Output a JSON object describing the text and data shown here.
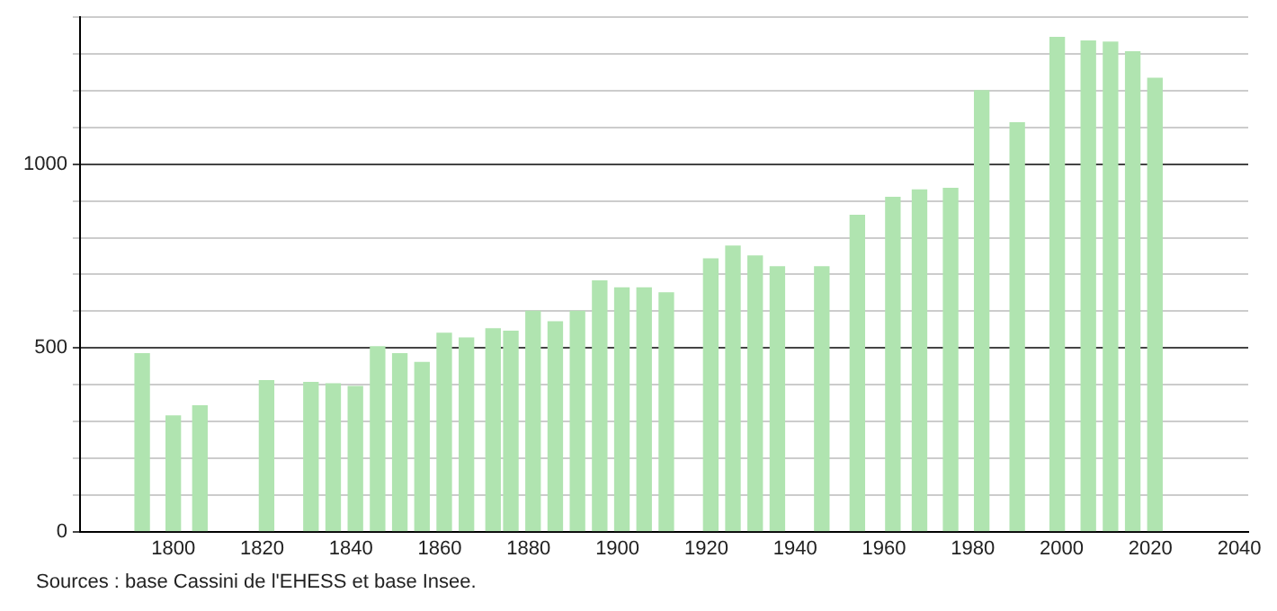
{
  "chart_data": {
    "type": "bar",
    "color": "#b0e4b0",
    "x": [
      1793,
      1800,
      1806,
      1821,
      1831,
      1836,
      1841,
      1846,
      1851,
      1856,
      1861,
      1866,
      1872,
      1876,
      1881,
      1886,
      1891,
      1896,
      1901,
      1906,
      1911,
      1921,
      1926,
      1931,
      1936,
      1946,
      1954,
      1962,
      1968,
      1975,
      1982,
      1990,
      1999,
      2006,
      2011,
      2016,
      2021
    ],
    "values": [
      484,
      315,
      342,
      411,
      406,
      402,
      395,
      503,
      484,
      460,
      540,
      527,
      552,
      545,
      600,
      571,
      600,
      682,
      663,
      663,
      650,
      742,
      777,
      750,
      721,
      721,
      861,
      910,
      930,
      934,
      1200,
      1113,
      1345,
      1335,
      1332,
      1306,
      1234
    ],
    "xlim": [
      1779,
      2042
    ],
    "xticks": [
      1800,
      1820,
      1840,
      1860,
      1880,
      1900,
      1920,
      1940,
      1960,
      1980,
      2000,
      2020,
      2040
    ],
    "ylim": [
      0,
      1400
    ],
    "yticks": [
      0,
      {
        "value": 100,
        "label": null
      },
      {
        "value": 200,
        "label": null
      },
      {
        "value": 300,
        "label": null
      },
      {
        "value": 400,
        "label": null
      },
      500,
      {
        "value": 600,
        "label": null
      },
      {
        "value": 700,
        "label": null
      },
      {
        "value": 800,
        "label": null
      },
      {
        "value": 900,
        "label": null
      },
      1000,
      {
        "value": 1100,
        "label": null
      },
      {
        "value": 1200,
        "label": null
      },
      {
        "value": 1300,
        "label": null
      },
      {
        "value": 1400,
        "label": null
      }
    ],
    "grid": "y",
    "annotations": [
      "Sources : base Cassini de l'EHESS et base Insee."
    ]
  }
}
